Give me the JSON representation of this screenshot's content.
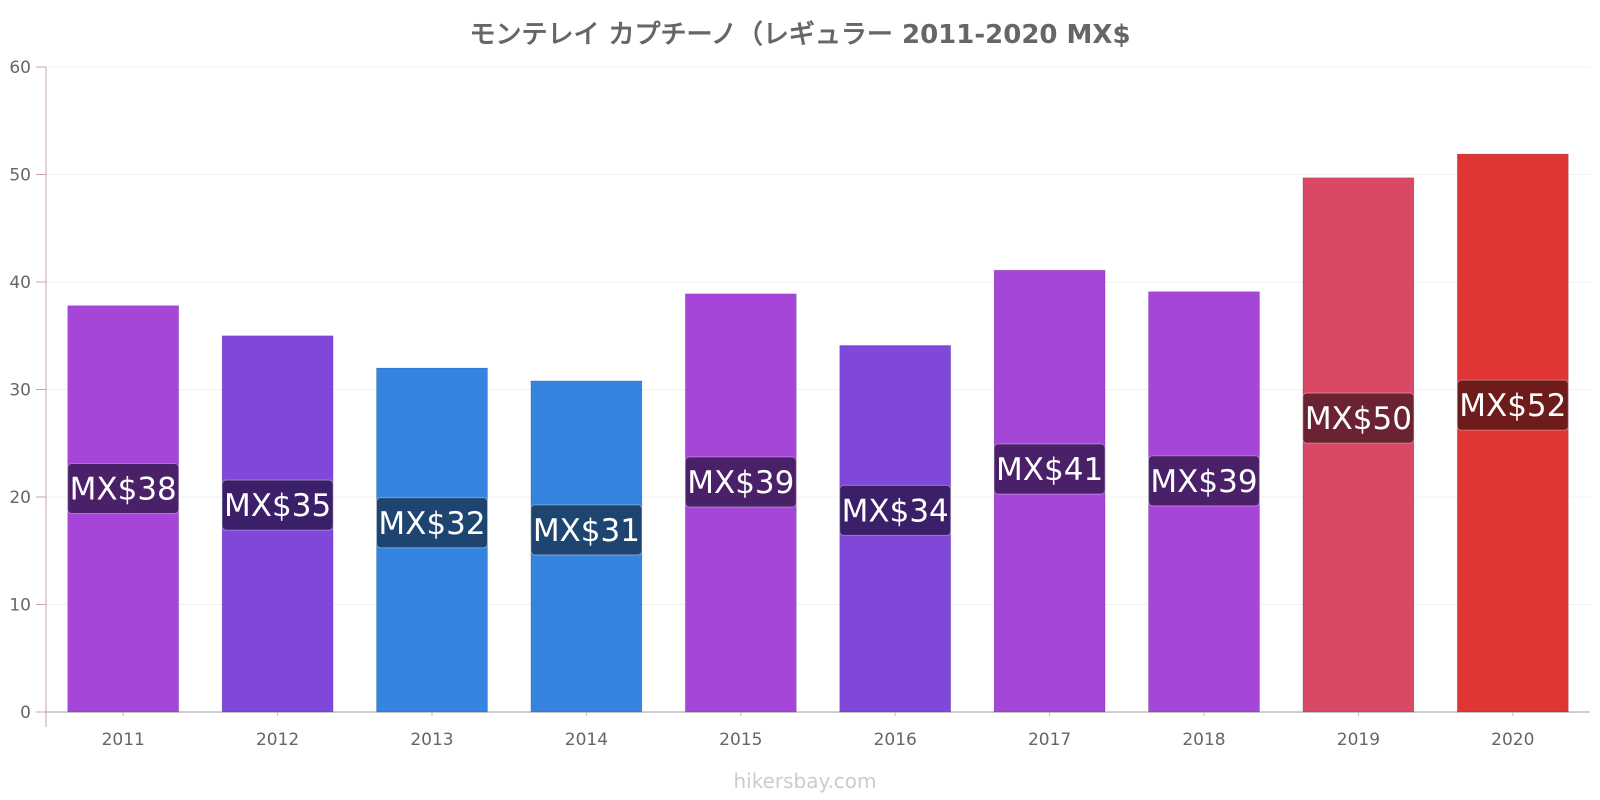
{
  "chart_data": {
    "type": "bar",
    "title": "モンテレイ カプチーノ（レギュラー 2011-2020 MX$",
    "xlabel": "",
    "ylabel": "",
    "categories": [
      "2011",
      "2012",
      "2013",
      "2014",
      "2015",
      "2016",
      "2017",
      "2018",
      "2019",
      "2020"
    ],
    "values": [
      37.8,
      35.0,
      32.0,
      30.8,
      38.9,
      34.1,
      41.1,
      39.1,
      49.7,
      51.9
    ],
    "data_labels": [
      "MX$38",
      "MX$35",
      "MX$32",
      "MX$31",
      "MX$39",
      "MX$34",
      "MX$41",
      "MX$39",
      "MX$50",
      "MX$52"
    ],
    "bar_colors": [
      "#a646d9",
      "#8048d9",
      "#3584e0",
      "#3584e0",
      "#a646d9",
      "#8048d9",
      "#a646d9",
      "#a646d9",
      "#d94966",
      "#e03535"
    ],
    "label_colors": [
      "#4a2068",
      "#3b1f68",
      "#1e4470",
      "#1e4470",
      "#4a2068",
      "#3b1f68",
      "#4a2068",
      "#4a2068",
      "#6b2333",
      "#6e1b1b"
    ],
    "ylim": [
      0,
      60
    ],
    "yticks": [
      0,
      10,
      20,
      30,
      40,
      50,
      60
    ],
    "grid": true,
    "legend": "none"
  },
  "watermark": "hikersbay.com"
}
